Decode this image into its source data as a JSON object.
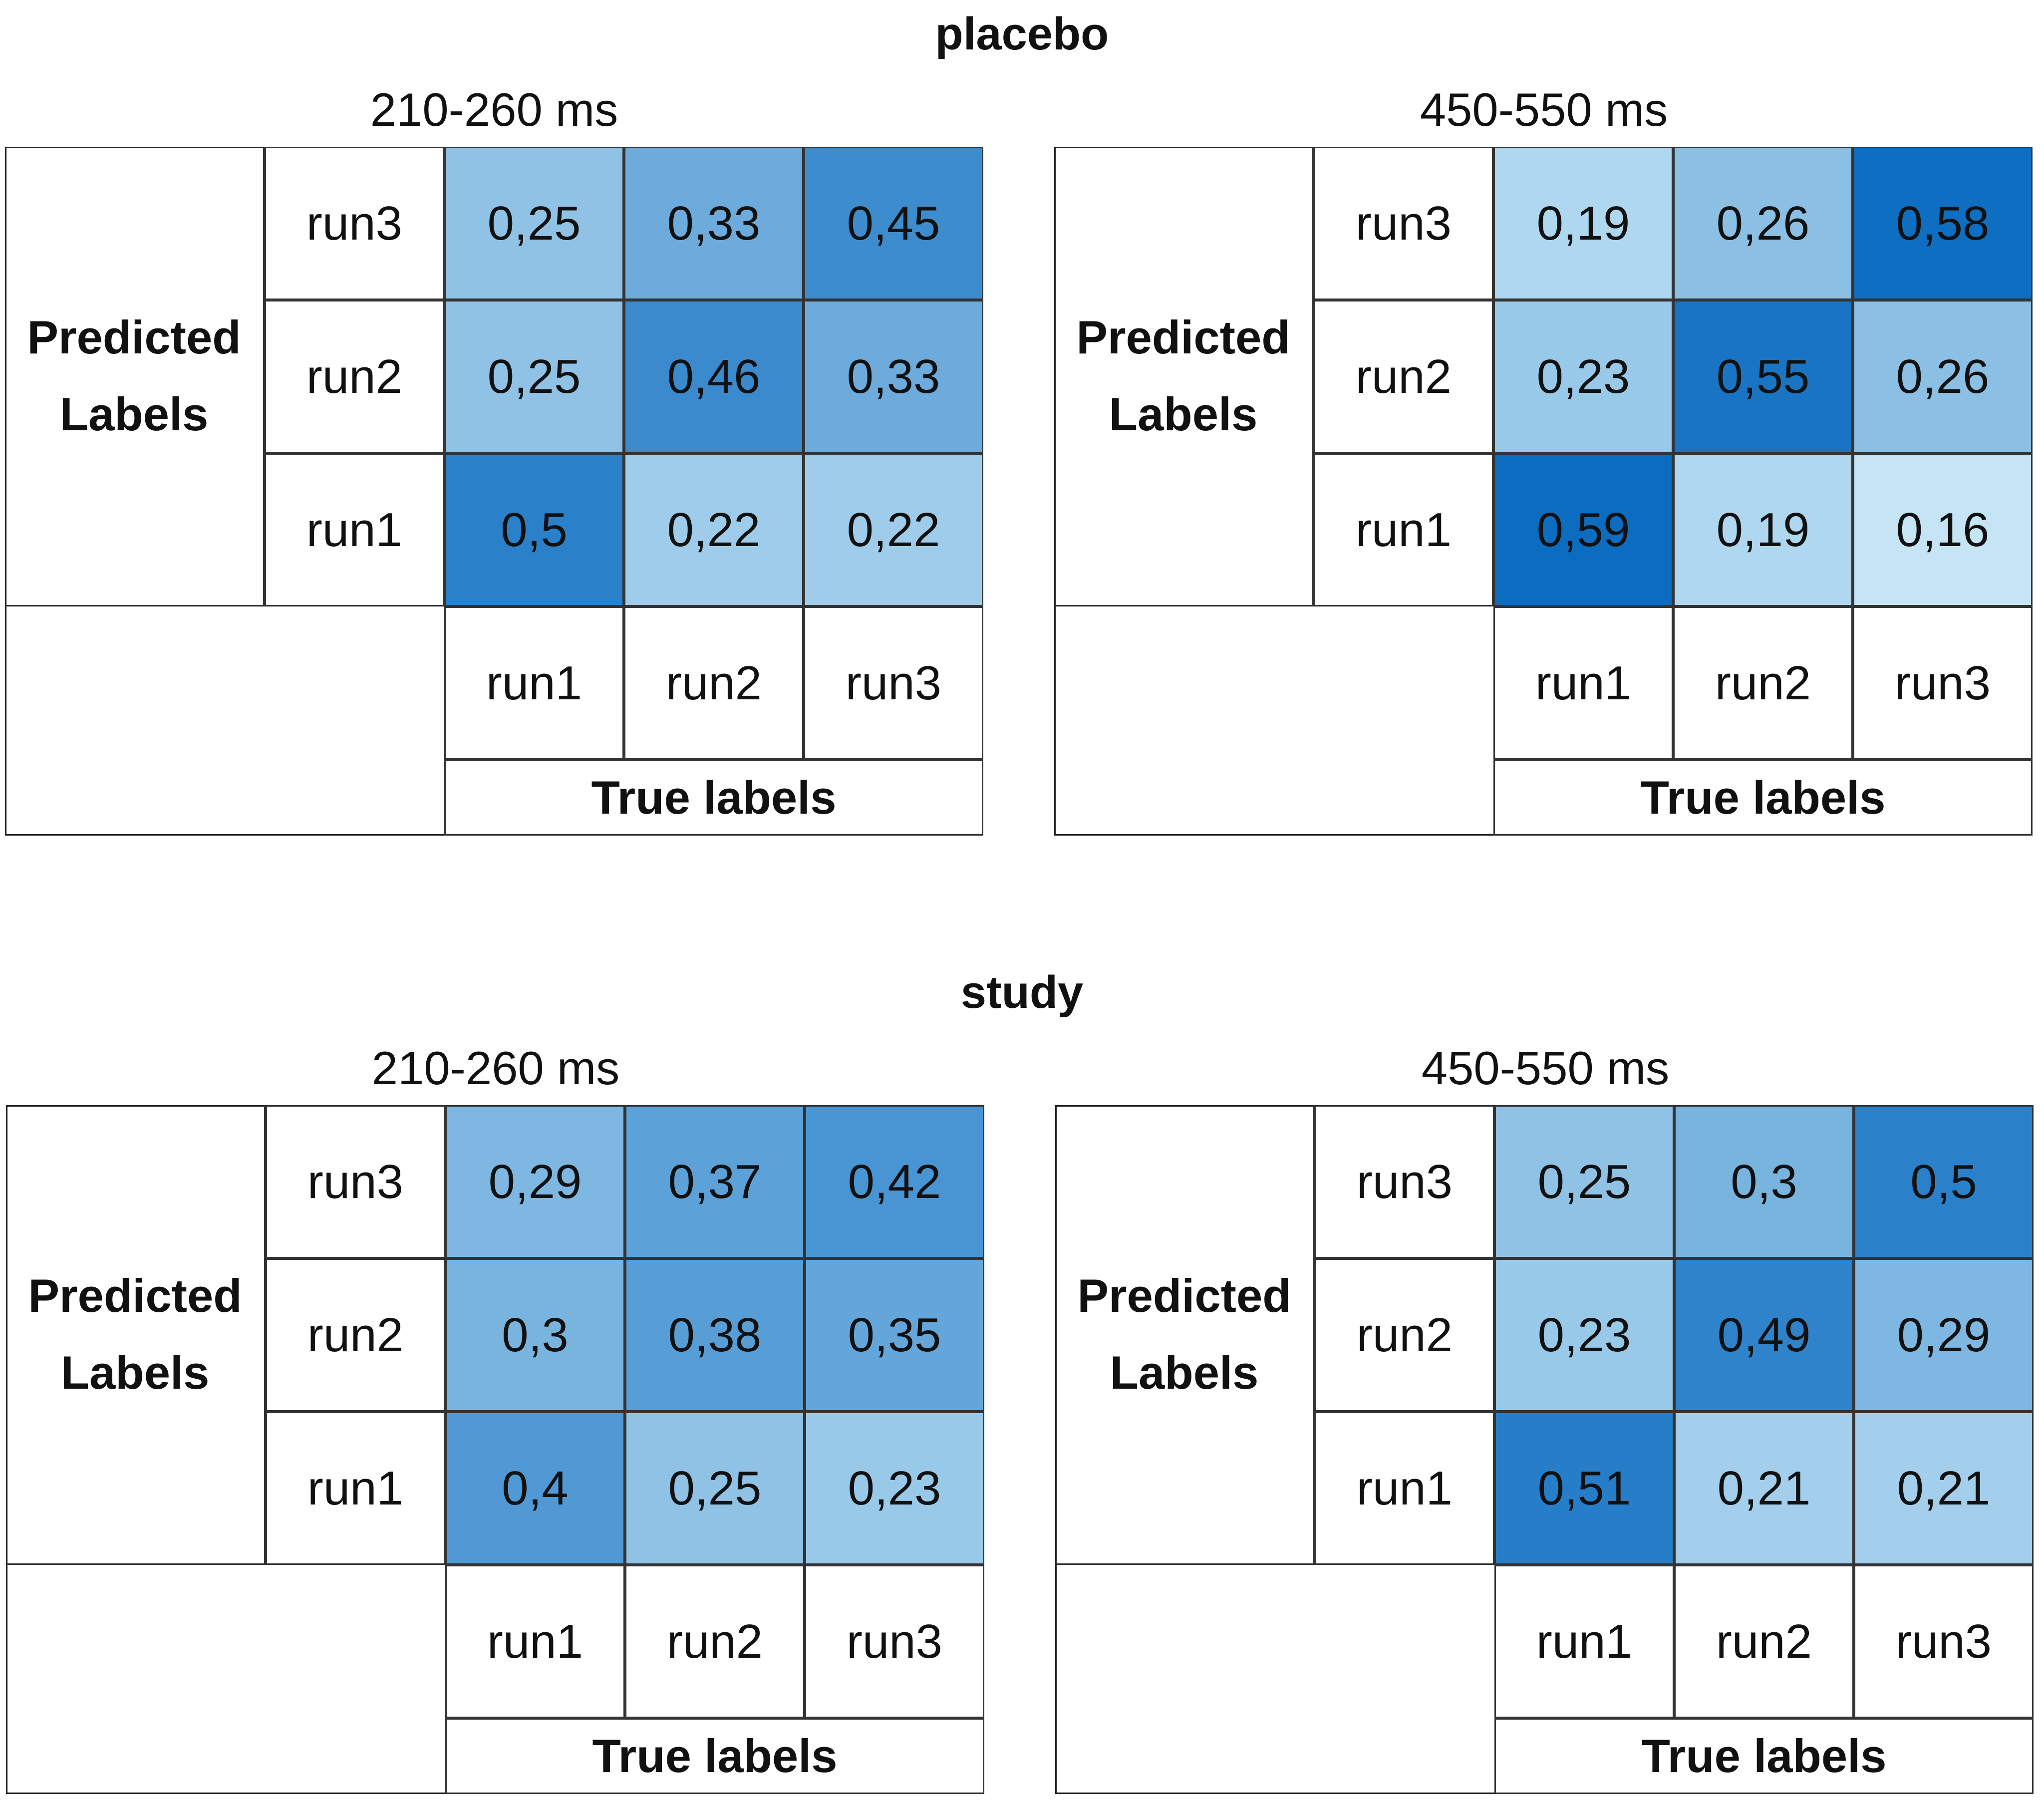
{
  "chart_data": [
    {
      "type": "heatmap",
      "group": "placebo",
      "title": "210-260 ms",
      "ylabel": "Predicted Labels",
      "xlabel": "True labels",
      "rows": [
        "run3",
        "run2",
        "run1"
      ],
      "cols": [
        "run1",
        "run2",
        "run3"
      ],
      "values": [
        [
          "0,25",
          "0,33",
          "0,45"
        ],
        [
          "0,25",
          "0,46",
          "0,33"
        ],
        [
          "0,5",
          "0,22",
          "0,22"
        ]
      ]
    },
    {
      "type": "heatmap",
      "group": "placebo",
      "title": "450-550 ms",
      "ylabel": "Predicted Labels",
      "xlabel": "True labels",
      "rows": [
        "run3",
        "run2",
        "run1"
      ],
      "cols": [
        "run1",
        "run2",
        "run3"
      ],
      "values": [
        [
          "0,19",
          "0,26",
          "0,58"
        ],
        [
          "0,23",
          "0,55",
          "0,26"
        ],
        [
          "0,59",
          "0,19",
          "0,16"
        ]
      ]
    },
    {
      "type": "heatmap",
      "group": "study",
      "title": "210-260 ms",
      "ylabel": "Predicted Labels",
      "xlabel": "True labels",
      "rows": [
        "run3",
        "run2",
        "run1"
      ],
      "cols": [
        "run1",
        "run2",
        "run3"
      ],
      "values": [
        [
          "0,29",
          "0,37",
          "0,42"
        ],
        [
          "0,3",
          "0,38",
          "0,35"
        ],
        [
          "0,4",
          "0,25",
          "0,23"
        ]
      ]
    },
    {
      "type": "heatmap",
      "group": "study",
      "title": "450-550 ms",
      "ylabel": "Predicted Labels",
      "xlabel": "True labels",
      "rows": [
        "run3",
        "run2",
        "run1"
      ],
      "cols": [
        "run1",
        "run2",
        "run3"
      ],
      "values": [
        [
          "0,25",
          "0,3",
          "0,5"
        ],
        [
          "0,23",
          "0,49",
          "0,29"
        ],
        [
          "0,51",
          "0,21",
          "0,21"
        ]
      ]
    }
  ],
  "sections": {
    "placebo": "placebo",
    "study": "study"
  },
  "colors": {
    "low": "#c5e5f5",
    "high": "#0b6cc0",
    "border": "#333333"
  }
}
